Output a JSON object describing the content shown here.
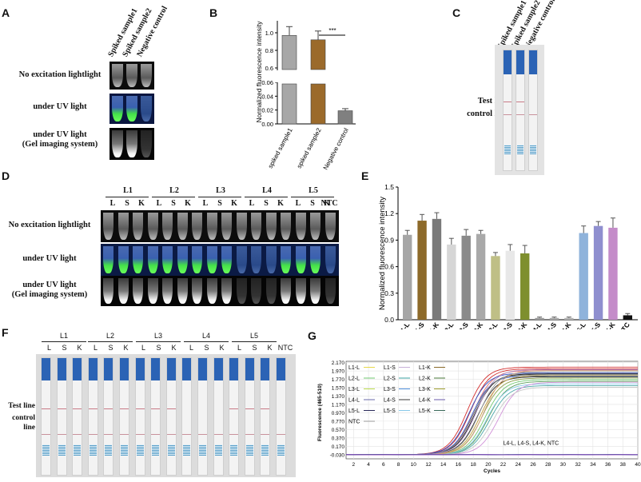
{
  "panels": {
    "A": {
      "label": "A",
      "columns": [
        "Spiked sample1",
        "Spiked sample2",
        "Negative control"
      ],
      "rows": [
        "No excitation lightlight",
        "under UV light",
        "under UV light\n(Gel imaging system)"
      ]
    },
    "B": {
      "label": "B"
    },
    "C": {
      "label": "C",
      "columns": [
        "Spiked sample1",
        "Spiked sample2",
        "Negative control"
      ],
      "test_line": "Test line",
      "control_line": "control line"
    },
    "D": {
      "label": "D",
      "groups": [
        "L1",
        "L2",
        "L3",
        "L4",
        "L5"
      ],
      "sub": [
        "L",
        "S",
        "K"
      ],
      "ntc": "NTC",
      "rows": [
        "No excitation lightlight",
        "under UV light",
        "under UV light\n(Gel imaging system)"
      ]
    },
    "E": {
      "label": "E"
    },
    "F": {
      "label": "F",
      "groups": [
        "L1",
        "L2",
        "L3",
        "L4",
        "L5"
      ],
      "sub": [
        "L",
        "S",
        "K"
      ],
      "ntc": "NTC",
      "test_line": "Test line",
      "control_line": "control line"
    },
    "G": {
      "label": "G"
    }
  },
  "chart_data": [
    {
      "id": "B",
      "type": "bar",
      "ylabel": "Normalized fluorescence intensity",
      "categories": [
        "spiked sample1",
        "spiked sample2",
        "Negative control"
      ],
      "values": [
        0.97,
        0.92,
        0.019
      ],
      "errors": [
        0.1,
        0.1,
        0.003
      ],
      "colors": [
        "#a7a7a7",
        "#9b6a2b",
        "#808080"
      ],
      "broken_axis": {
        "lower": [
          0,
          0.06
        ],
        "upper": [
          0.6,
          1.1
        ]
      },
      "lower_ticks": [
        "0.00",
        "0.02",
        "0.04",
        "0.06"
      ],
      "upper_ticks": [
        "0.6",
        "0.8",
        "1.0"
      ],
      "significance": "***"
    },
    {
      "id": "E",
      "type": "bar",
      "ylabel": "Normalized fluorescence intensity",
      "ylim": [
        0,
        1.5
      ],
      "yticks": [
        "0.0",
        "0.3",
        "0.6",
        "0.9",
        "1.2",
        "1.5"
      ],
      "categories": [
        "L1-L",
        "L1-S",
        "L1-K",
        "L2-L",
        "L2-S",
        "L2-K",
        "L3-L",
        "L3-S",
        "L3-K",
        "L4-L",
        "L4-S",
        "L4-K",
        "L5-L",
        "L5-S",
        "L5-K",
        "NTC"
      ],
      "values": [
        0.96,
        1.12,
        1.14,
        0.85,
        0.95,
        0.97,
        0.72,
        0.78,
        0.75,
        0.02,
        0.02,
        0.02,
        0.98,
        1.06,
        1.04,
        0.05
      ],
      "errors": [
        0.05,
        0.07,
        0.07,
        0.07,
        0.07,
        0.04,
        0.04,
        0.07,
        0.09,
        0.01,
        0.01,
        0.01,
        0.08,
        0.05,
        0.11,
        0.02
      ],
      "colors": [
        "#a6a6a6",
        "#8d6a2a",
        "#7a7a7a",
        "#d6d6d6",
        "#8a8a8a",
        "#a9a9a9",
        "#bfbf86",
        "#e8e8e8",
        "#7e8f2e",
        "#9a9a9a",
        "#a8a8a8",
        "#b2b2b2",
        "#8fb3db",
        "#8f8fcf",
        "#c48cc9",
        "#111111"
      ]
    },
    {
      "id": "G",
      "type": "line",
      "ylabel": "Fluorescence (465-510)",
      "xlabel": "Cycles",
      "xticks": [
        "2",
        "4",
        "6",
        "8",
        "10",
        "12",
        "14",
        "16",
        "18",
        "20",
        "22",
        "24",
        "26",
        "28",
        "30",
        "32",
        "34",
        "36",
        "38",
        "40"
      ],
      "yticks": [
        "-0.030",
        "0.170",
        "0.370",
        "0.570",
        "0.770",
        "0.970",
        "1.170",
        "1.370",
        "1.570",
        "1.770",
        "1.970",
        "2.170"
      ],
      "xlim": [
        1,
        40
      ],
      "ylim": [
        -0.13,
        2.2
      ],
      "annotation": "L4-L, L4-S, L4-K, NTC",
      "legend": [
        {
          "name": "L1-L",
          "color": "#e8d84a"
        },
        {
          "name": "L1-S",
          "color": "#c8b0d8"
        },
        {
          "name": "L1-K",
          "color": "#8a6a2a"
        },
        {
          "name": "L2-L",
          "color": "#6fc86f"
        },
        {
          "name": "L2-S",
          "color": "#3aa0a0"
        },
        {
          "name": "L2-K",
          "color": "#4a7a3a"
        },
        {
          "name": "L3-L",
          "color": "#b8d84a"
        },
        {
          "name": "L3-S",
          "color": "#4a8ad8"
        },
        {
          "name": "L3-K",
          "color": "#9a9a2a"
        },
        {
          "name": "L4-L",
          "color": "#6a6aa8"
        },
        {
          "name": "L4-S",
          "color": "#3a3a3a"
        },
        {
          "name": "L4-K",
          "color": "#6a5aa8"
        },
        {
          "name": "L5-L",
          "color": "#2a2a5a"
        },
        {
          "name": "L5-S",
          "color": "#88c8e8"
        },
        {
          "name": "L5-K",
          "color": "#3a6a5a"
        },
        {
          "name": "NTC",
          "color": "#9a9a9a"
        }
      ],
      "curves": [
        {
          "color": "#d43030",
          "mid": 17.2,
          "plateau": 2.06
        },
        {
          "color": "#d43030",
          "mid": 17.6,
          "plateau": 2.02
        },
        {
          "color": "#e07070",
          "mid": 18.0,
          "plateau": 1.98
        },
        {
          "color": "#3050c8",
          "mid": 17.4,
          "plateau": 1.92
        },
        {
          "color": "#3a6ad8",
          "mid": 17.8,
          "plateau": 1.85
        },
        {
          "color": "#111111",
          "mid": 18.2,
          "plateau": 1.9
        },
        {
          "color": "#222222",
          "mid": 18.6,
          "plateau": 1.83
        },
        {
          "color": "#707070",
          "mid": 18.0,
          "plateau": 1.88
        },
        {
          "color": "#9a9a9a",
          "mid": 18.8,
          "plateau": 1.95
        },
        {
          "color": "#8aa04a",
          "mid": 19.2,
          "plateau": 1.8
        },
        {
          "color": "#6fc86f",
          "mid": 19.6,
          "plateau": 1.76
        },
        {
          "color": "#5aa05a",
          "mid": 20.0,
          "plateau": 1.72
        },
        {
          "color": "#c0a040",
          "mid": 19.0,
          "plateau": 1.86
        },
        {
          "color": "#88c8e8",
          "mid": 19.8,
          "plateau": 1.66
        },
        {
          "color": "#4aa8a8",
          "mid": 20.2,
          "plateau": 1.62
        },
        {
          "color": "#b090c8",
          "mid": 18.4,
          "plateau": 2.0
        },
        {
          "color": "#d090d8",
          "mid": 21.4,
          "plateau": 1.7
        },
        {
          "color": "#c8c8c8",
          "mid": 20.6,
          "plateau": 1.58
        },
        {
          "color": "#d4a080",
          "mid": 19.4,
          "plateau": 1.98
        }
      ]
    }
  ]
}
